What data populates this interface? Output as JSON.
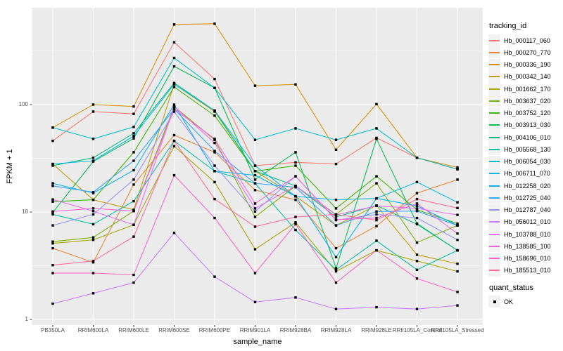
{
  "figure": {
    "background": "#FFFFFF",
    "panel_background": "#EBEBEB",
    "grid_color": "#FFFFFF",
    "tick_mark_color": "#333333",
    "axis_text_color": "#4D4D4D",
    "legend_key_background": "#F2F2F2",
    "point_color": "#000000"
  },
  "legend": {
    "tracking_title": "tracking_id",
    "quant_title": "quant_status",
    "quant_items": [
      {
        "label": "OK",
        "marker": "black-square"
      }
    ]
  },
  "chart_data": {
    "type": "line",
    "title": "",
    "xlabel": "sample_name",
    "ylabel": "FPKM + 1",
    "y_scale": "log10",
    "ylim": [
      0.9,
      800
    ],
    "grid": true,
    "legend_position": "right",
    "point_shape": "filled-square",
    "categories": [
      "PB350LA",
      "RRIM600LA",
      "RRIM600LE",
      "RRIM600SE",
      "RRIM600PE",
      "RRIM901LA",
      "RRIM928BA",
      "RRIM928LA",
      "RRIM928LE",
      "RRII105LA_Control",
      "RRII105LA_Stressed"
    ],
    "y_ticks": [
      {
        "label": "100",
        "value": 100
      },
      {
        "label": "10",
        "value": 10
      },
      {
        "label": "1",
        "value": 1
      }
    ],
    "y_minor_ticks": [
      3.1623,
      31.623,
      316.23
    ],
    "series": [
      {
        "name": "Hb_000117_060",
        "color": "#F8766D",
        "values": [
          46,
          86,
          82,
          380,
          173,
          27,
          29,
          28,
          49,
          32,
          25
        ]
      },
      {
        "name": "Hb_000270_770",
        "color": "#EA8331",
        "values": [
          4.6,
          3.4,
          18,
          52,
          36,
          16,
          13,
          4.6,
          7.4,
          15,
          20
        ]
      },
      {
        "name": "Hb_000336_190",
        "color": "#D89000",
        "values": [
          61,
          100,
          96,
          558,
          566,
          150,
          154,
          38,
          101,
          32,
          26
        ]
      },
      {
        "name": "Hb_000342_140",
        "color": "#C09B00",
        "values": [
          28,
          13,
          10.5,
          155,
          86,
          24,
          14,
          7.5,
          11.5,
          4.0,
          3.3
        ]
      },
      {
        "name": "Hb_001662_170",
        "color": "#A3A500",
        "values": [
          5.1,
          5.5,
          7.6,
          41,
          19,
          4.5,
          8.0,
          2.8,
          4.4,
          3.5,
          2.8
        ]
      },
      {
        "name": "Hb_003637_020",
        "color": "#7CAE00",
        "values": [
          5.3,
          5.8,
          10.2,
          96,
          47,
          9.0,
          17.5,
          9.5,
          18.5,
          5.2,
          7.5
        ]
      },
      {
        "name": "Hb_003752_120",
        "color": "#39B600",
        "values": [
          12.5,
          13,
          36,
          146,
          79,
          24,
          27,
          10.8,
          21.5,
          10.5,
          7.8
        ]
      },
      {
        "name": "Hb_003913_030",
        "color": "#00BB4E",
        "values": [
          9.9,
          29.5,
          48.5,
          227,
          143,
          20,
          36,
          3.0,
          48,
          7.8,
          4.4
        ]
      },
      {
        "name": "Hb_004106_010",
        "color": "#00BF7D",
        "values": [
          27,
          32,
          54,
          159,
          88,
          24,
          17.5,
          9.0,
          11.5,
          7.7,
          4.4
        ]
      },
      {
        "name": "Hb_005568_130",
        "color": "#00C1A3",
        "values": [
          9.5,
          7.7,
          12.6,
          46,
          24,
          18.5,
          6.8,
          2.9,
          5.4,
          2.9,
          4.4
        ]
      },
      {
        "name": "Hb_006054_030",
        "color": "#00BFC4",
        "values": [
          61,
          48,
          62,
          272,
          143,
          47,
          60,
          47,
          60,
          32,
          25
        ]
      },
      {
        "name": "Hb_006711_070",
        "color": "#00BAE0",
        "values": [
          28,
          30,
          51,
          155,
          88,
          27,
          14,
          13,
          13.4,
          19,
          12.3
        ]
      },
      {
        "name": "Hb_012258_020",
        "color": "#00B0F6",
        "values": [
          18.5,
          15,
          24.5,
          100,
          24,
          22,
          14,
          3.8,
          13.4,
          11.4,
          7.5
        ]
      },
      {
        "name": "Hb_012725_040",
        "color": "#35A2FF",
        "values": [
          17.5,
          15.3,
          30,
          91,
          37,
          18.5,
          17,
          7.5,
          10.1,
          10.2,
          7.5
        ]
      },
      {
        "name": "Hb_012787_040",
        "color": "#9590FF",
        "values": [
          7.5,
          9.5,
          20,
          86,
          27,
          10.1,
          21.5,
          8.4,
          9.5,
          8.8,
          5.5
        ]
      },
      {
        "name": "Hb_056012_010",
        "color": "#C77CFF",
        "values": [
          1.4,
          1.75,
          2.2,
          6.4,
          2.5,
          1.45,
          1.6,
          1.25,
          1.3,
          1.25,
          1.35
        ]
      },
      {
        "name": "Hb_103788_010",
        "color": "#E76BF3",
        "values": [
          13.1,
          10.2,
          7.6,
          96,
          44,
          10.8,
          17.5,
          9.4,
          11.4,
          10.8,
          9.4
        ]
      },
      {
        "name": "Hb_138585_100",
        "color": "#FA62DB",
        "values": [
          10.1,
          10.8,
          10.2,
          91,
          48,
          12,
          21.5,
          8.5,
          8.8,
          12,
          6.3
        ]
      },
      {
        "name": "Hb_158696_010",
        "color": "#FF62BC",
        "values": [
          2.7,
          2.7,
          2.6,
          22,
          8.8,
          2.7,
          7.7,
          2.2,
          4.4,
          2.4,
          1.8
        ]
      },
      {
        "name": "Hb_185513_010",
        "color": "#FF6A98",
        "values": [
          3.2,
          3.5,
          5.9,
          46,
          13.2,
          7.3,
          9.0,
          9.5,
          8.4,
          13.2,
          10.9
        ]
      }
    ]
  }
}
